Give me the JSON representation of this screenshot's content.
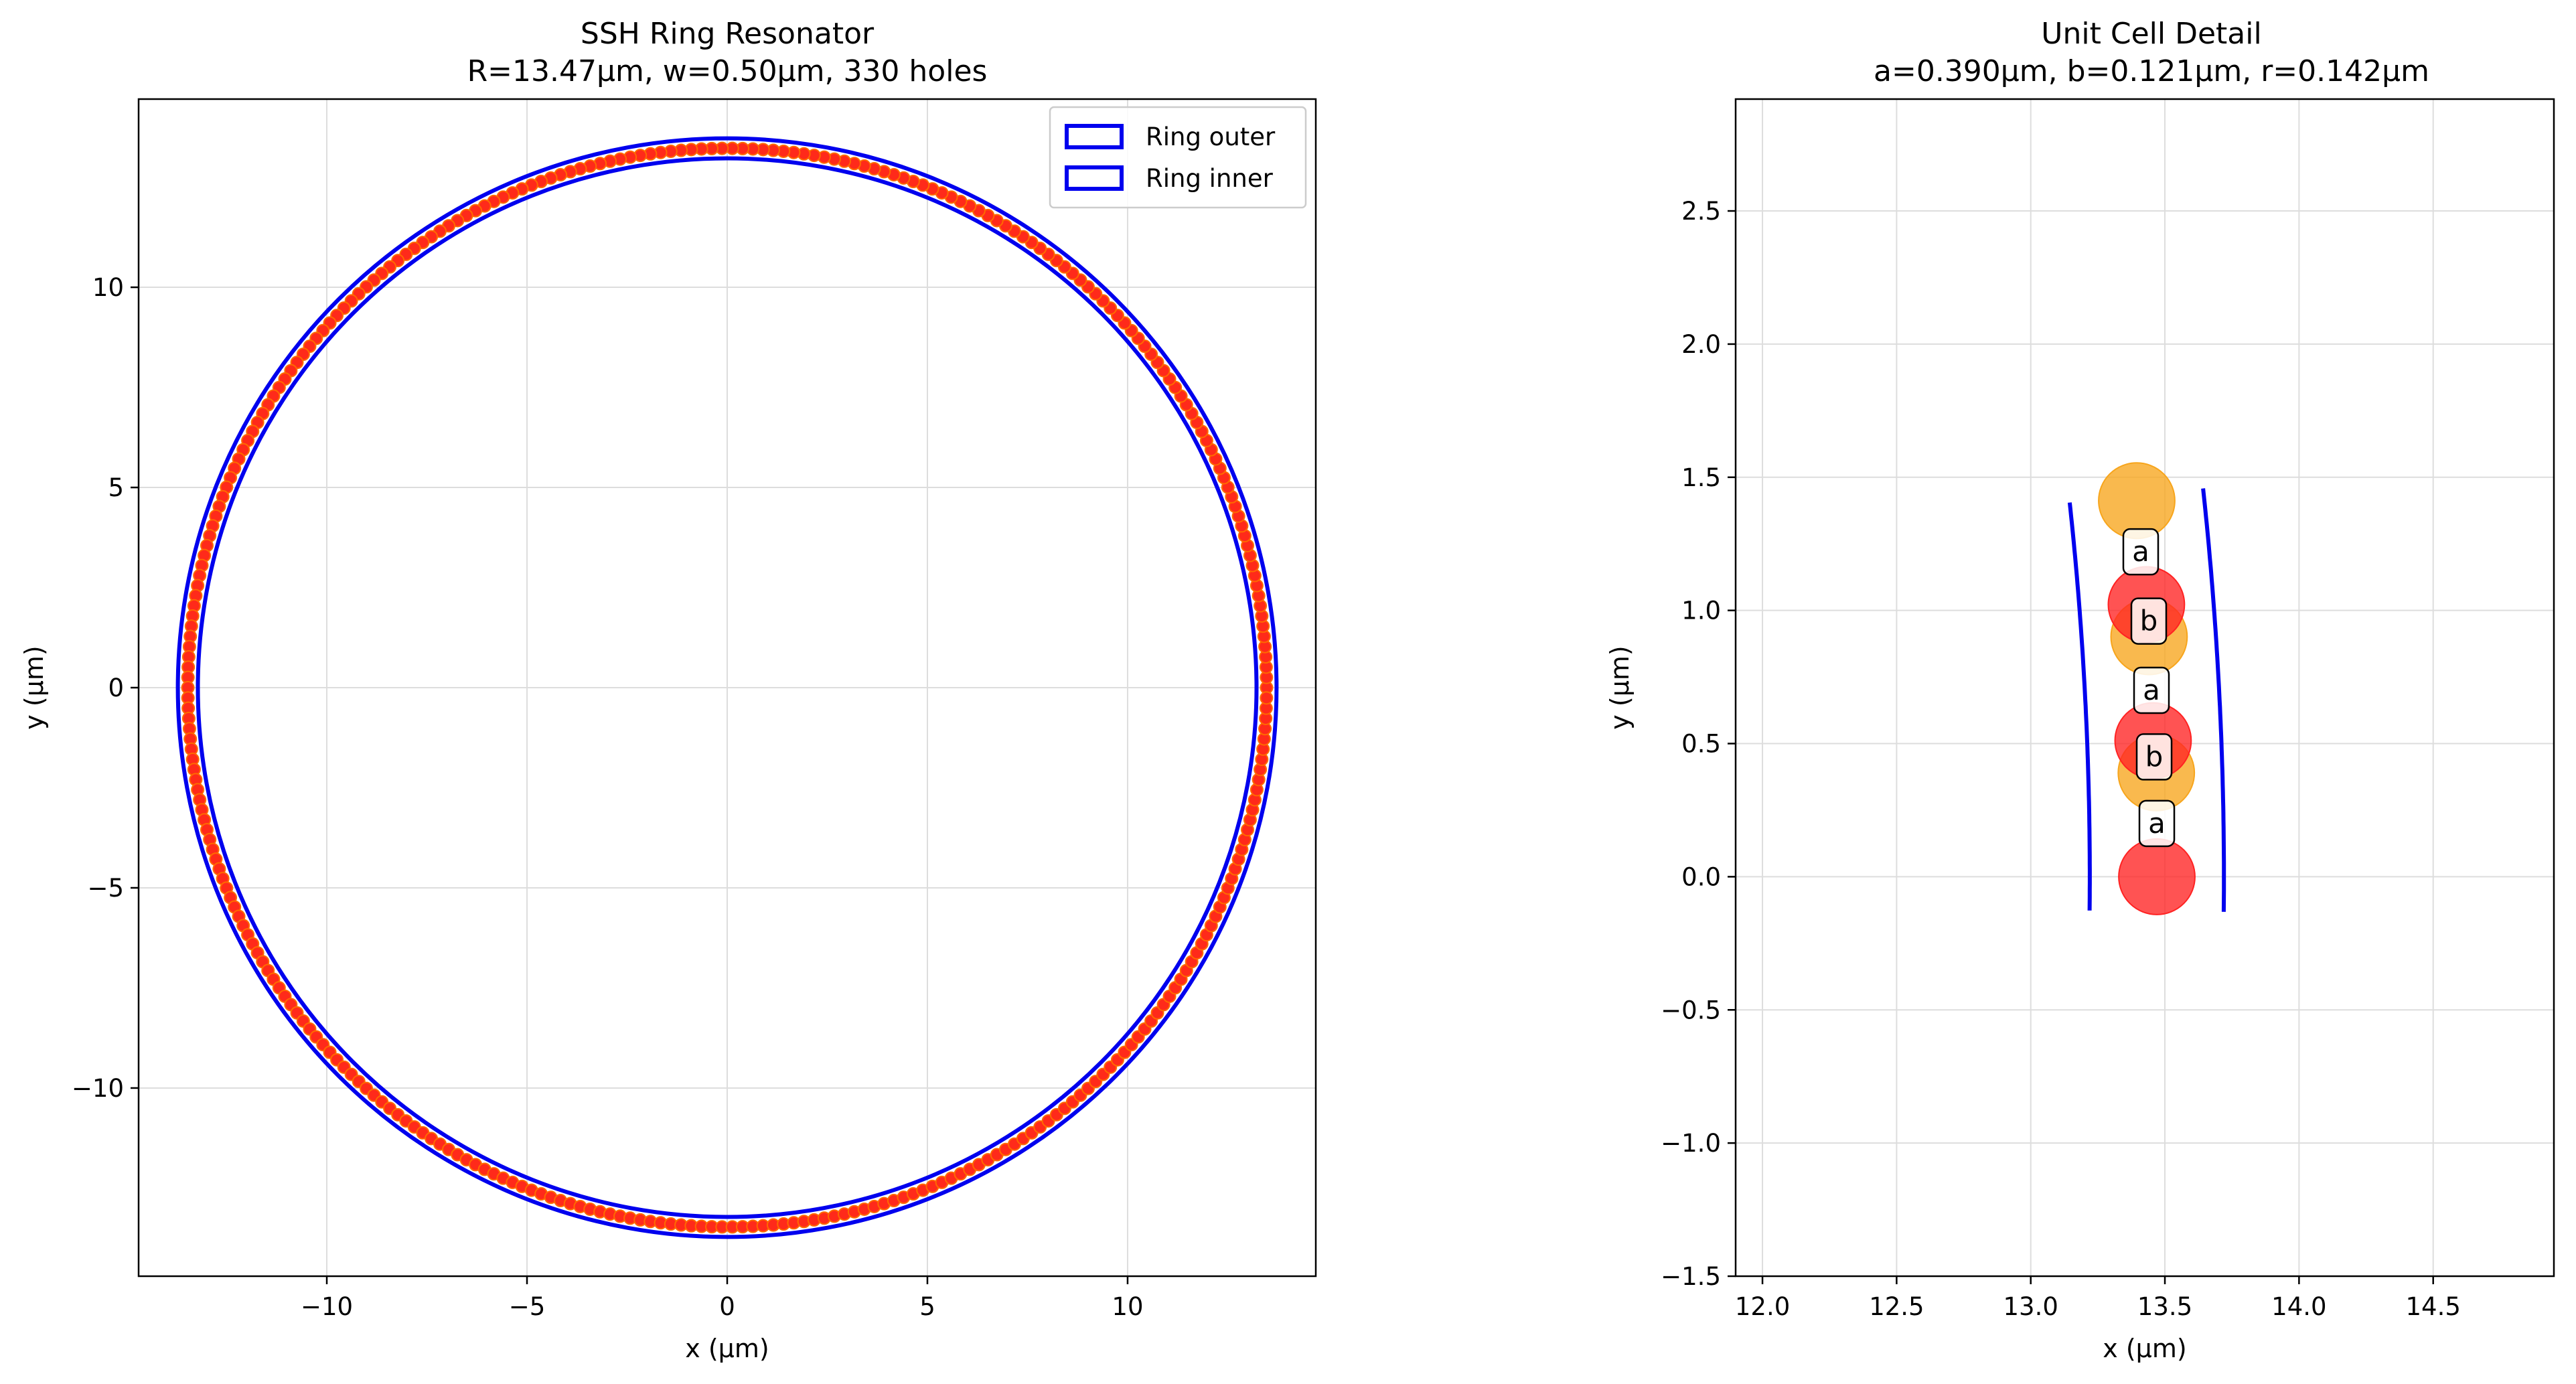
{
  "chart_data": [
    {
      "type": "scatter",
      "title": "SSH Ring Resonator\nR=13.47μm, w=0.50μm, 330 holes",
      "title_lines": [
        "SSH Ring Resonator",
        "R=13.47μm, w=0.50μm, 330 holes"
      ],
      "xlabel": "x (μm)",
      "ylabel": "y (μm)",
      "xlim": [
        -14.7,
        14.7
      ],
      "ylim": [
        -14.7,
        14.7
      ],
      "x_ticks": [
        -10,
        -5,
        0,
        5,
        10
      ],
      "y_ticks": [
        -10,
        -5,
        0,
        5,
        10
      ],
      "x_tick_labels": [
        "−10",
        "−5",
        "0",
        "5",
        "10"
      ],
      "y_tick_labels": [
        "−10",
        "−5",
        "0",
        "5",
        "10"
      ],
      "grid": true,
      "legend_position": "top-right",
      "ring": {
        "center": [
          0,
          0
        ],
        "outer_radius": 13.72,
        "inner_radius": 13.22,
        "color": "#0000ee"
      },
      "holes": {
        "count": 330,
        "radius": 13.47,
        "marker_color": "#ff2a1a",
        "edge_color": "#ff6a00"
      },
      "series": [
        {
          "name": "Ring outer",
          "color": "#0000ee"
        },
        {
          "name": "Ring inner",
          "color": "#0000ee"
        }
      ]
    },
    {
      "type": "scatter",
      "title": "Unit Cell Detail\na=0.390μm, b=0.121μm, r=0.142μm",
      "title_lines": [
        "Unit Cell Detail",
        "a=0.390μm, b=0.121μm, r=0.142μm"
      ],
      "xlabel": "x (μm)",
      "ylabel": "y (μm)",
      "xlim": [
        11.9,
        14.95
      ],
      "ylim": [
        -1.5,
        2.92
      ],
      "x_ticks": [
        12.0,
        12.5,
        13.0,
        13.5,
        14.0,
        14.5
      ],
      "y_ticks": [
        -1.5,
        -1.0,
        -0.5,
        0.0,
        0.5,
        1.0,
        1.5,
        2.0,
        2.5
      ],
      "x_tick_labels": [
        "12.0",
        "12.5",
        "13.0",
        "13.5",
        "14.0",
        "14.5"
      ],
      "y_tick_labels": [
        "−1.5",
        "−1.0",
        "−0.5",
        "0.0",
        "0.5",
        "1.0",
        "1.5",
        "2.0",
        "2.5"
      ],
      "grid": true,
      "arc_radii": [
        13.22,
        13.72
      ],
      "arc_angle_range_deg": [
        -0.55,
        6.1
      ],
      "arc_color": "#0000ee",
      "holes": [
        {
          "x": 13.47,
          "y": 0.0,
          "r": 0.142,
          "color": "#ff2222"
        },
        {
          "x": 13.468,
          "y": 0.39,
          "r": 0.142,
          "color": "#f7a51c"
        },
        {
          "x": 13.456,
          "y": 0.511,
          "r": 0.142,
          "color": "#ff2222"
        },
        {
          "x": 13.441,
          "y": 0.901,
          "r": 0.142,
          "color": "#f7a51c"
        },
        {
          "x": 13.431,
          "y": 1.022,
          "r": 0.142,
          "color": "#ff2222"
        },
        {
          "x": 13.395,
          "y": 1.412,
          "r": 0.142,
          "color": "#f7a51c"
        }
      ],
      "labels": [
        {
          "text": "a",
          "x": 13.47,
          "y": 0.2
        },
        {
          "text": "b",
          "x": 13.46,
          "y": 0.45
        },
        {
          "text": "a",
          "x": 13.45,
          "y": 0.7
        },
        {
          "text": "b",
          "x": 13.44,
          "y": 0.96
        },
        {
          "text": "a",
          "x": 13.41,
          "y": 1.22
        }
      ]
    }
  ]
}
